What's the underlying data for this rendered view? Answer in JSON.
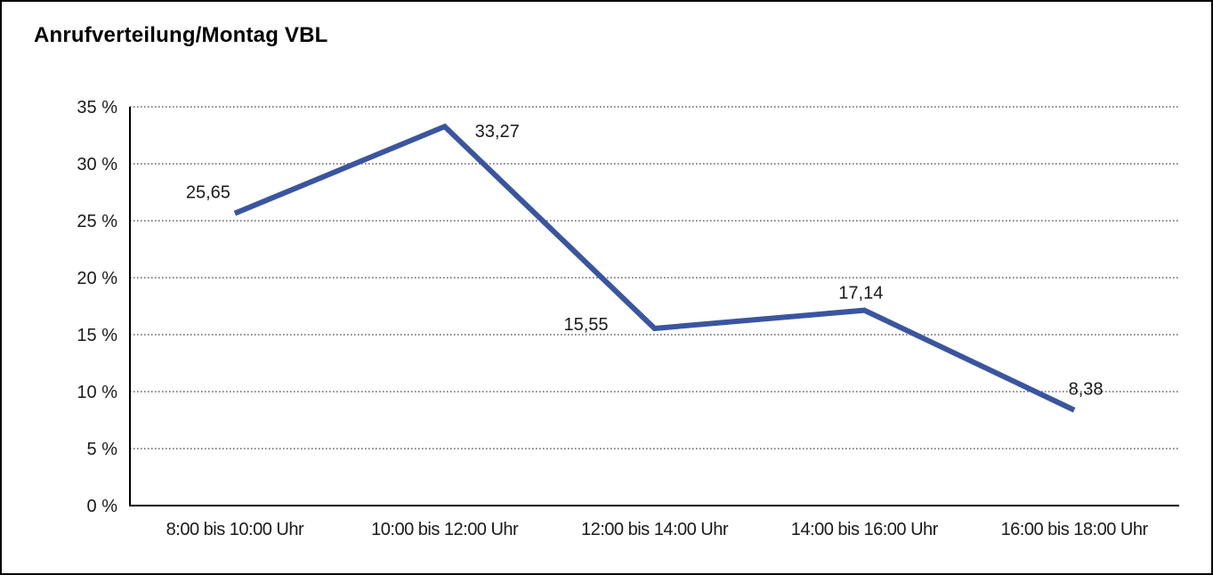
{
  "page": {
    "title": "Anrufverteilung/Montag VBL"
  },
  "chart_data": {
    "type": "line",
    "title": "Anrufverteilung/Montag VBL",
    "categories": [
      "8:00 bis 10:00 Uhr",
      "10:00 bis 12:00 Uhr",
      "12:00 bis 14:00 Uhr",
      "14:00 bis 16:00 Uhr",
      "16:00 bis 18:00 Uhr"
    ],
    "values": [
      25.65,
      33.27,
      15.55,
      17.14,
      8.38
    ],
    "point_labels": [
      "25,65",
      "33,27",
      "15,55",
      "17,14",
      "8,38"
    ],
    "ylim": [
      0,
      35
    ],
    "ytick_step": 5,
    "ytick_labels": [
      "0 %",
      "5 %",
      "10 %",
      "15 %",
      "20 %",
      "25 %",
      "30 %",
      "35 %"
    ],
    "xlabel": "",
    "ylabel": "",
    "grid": "horizontal-dotted",
    "legend": "none",
    "colors": {
      "line": "#3A55A0",
      "axis": "#000000",
      "gridline": "#3c3c3c",
      "text": "#1a1a1a",
      "background": "#ffffff"
    }
  }
}
